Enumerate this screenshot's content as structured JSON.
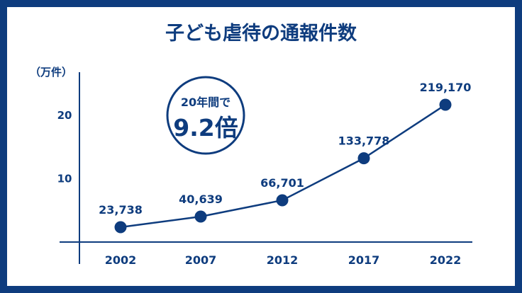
{
  "chart_data": {
    "type": "line",
    "title": "子ども虐待の通報件数",
    "ylabel": "（万件）",
    "x": [
      "2002",
      "2007",
      "2012",
      "2017",
      "2022"
    ],
    "values": [
      23738,
      40639,
      66701,
      133778,
      219170
    ],
    "data_labels": [
      "23,738",
      "40,639",
      "66,701",
      "133,778",
      "219,170"
    ],
    "yticks": [
      10,
      20
    ],
    "ytick_labels": [
      "10",
      "20"
    ],
    "ylim": [
      0,
      24
    ],
    "grid": false,
    "annotation": {
      "line1": "20年間で",
      "line2": "9.2倍"
    },
    "colors": {
      "primary": "#0e3c7e",
      "text": "#0e3c7e",
      "background": "#ffffff"
    }
  }
}
